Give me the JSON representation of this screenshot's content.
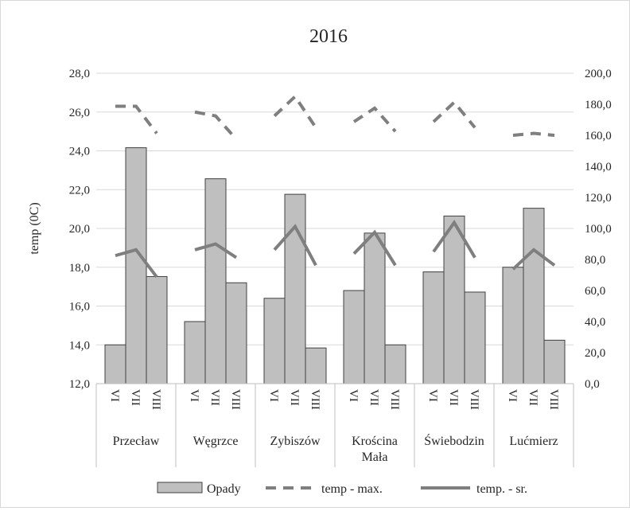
{
  "chart_data": {
    "type": "bar",
    "title": "2016",
    "ylabel": "temp (0C)",
    "y2label": "",
    "ylim": [
      12,
      28
    ],
    "y2lim": [
      0,
      200
    ],
    "yticks": [
      "12,0",
      "14,0",
      "16,0",
      "18,0",
      "20,0",
      "22,0",
      "24,0",
      "26,0",
      "28,0"
    ],
    "y2ticks": [
      "0,0",
      "20,0",
      "40,0",
      "60,0",
      "80,0",
      "100,0",
      "120,0",
      "140,0",
      "160,0",
      "180,0",
      "200,0"
    ],
    "months": [
      "VI",
      "VII",
      "VIII"
    ],
    "groups": [
      {
        "label_lines": [
          "Przecław"
        ]
      },
      {
        "label_lines": [
          "Węgrzce"
        ]
      },
      {
        "label_lines": [
          "Zybiszów"
        ]
      },
      {
        "label_lines": [
          "Krościna",
          "Mała"
        ]
      },
      {
        "label_lines": [
          "Świebodzin"
        ]
      },
      {
        "label_lines": [
          "Lućmierz"
        ]
      }
    ],
    "series": [
      {
        "name": "Opady",
        "type": "bar",
        "axis": "right",
        "color": "#bfbfbf",
        "values": [
          [
            25,
            152,
            69
          ],
          [
            40,
            132,
            65
          ],
          [
            55,
            122,
            23
          ],
          [
            60,
            97,
            25
          ],
          [
            72,
            108,
            59
          ],
          [
            75,
            113,
            28
          ]
        ]
      },
      {
        "name": "temp - max.",
        "type": "line",
        "axis": "left",
        "dash": true,
        "color": "#7f7f7f",
        "values": [
          [
            26.3,
            26.3,
            24.9
          ],
          [
            26.0,
            25.8,
            24.6
          ],
          [
            25.8,
            26.8,
            25.2
          ],
          [
            25.5,
            26.2,
            25.0
          ],
          [
            25.5,
            26.5,
            25.2
          ],
          [
            24.8,
            24.9,
            24.8
          ]
        ]
      },
      {
        "name": "temp. - sr.",
        "type": "line",
        "axis": "left",
        "dash": false,
        "color": "#7f7f7f",
        "values": [
          [
            18.6,
            18.9,
            17.5
          ],
          [
            18.9,
            19.2,
            18.5
          ],
          [
            18.9,
            20.1,
            18.1
          ],
          [
            18.7,
            19.8,
            18.1
          ],
          [
            18.8,
            20.3,
            18.5
          ],
          [
            17.9,
            18.9,
            18.1
          ]
        ]
      }
    ],
    "grid": true,
    "legend": "bottom"
  }
}
